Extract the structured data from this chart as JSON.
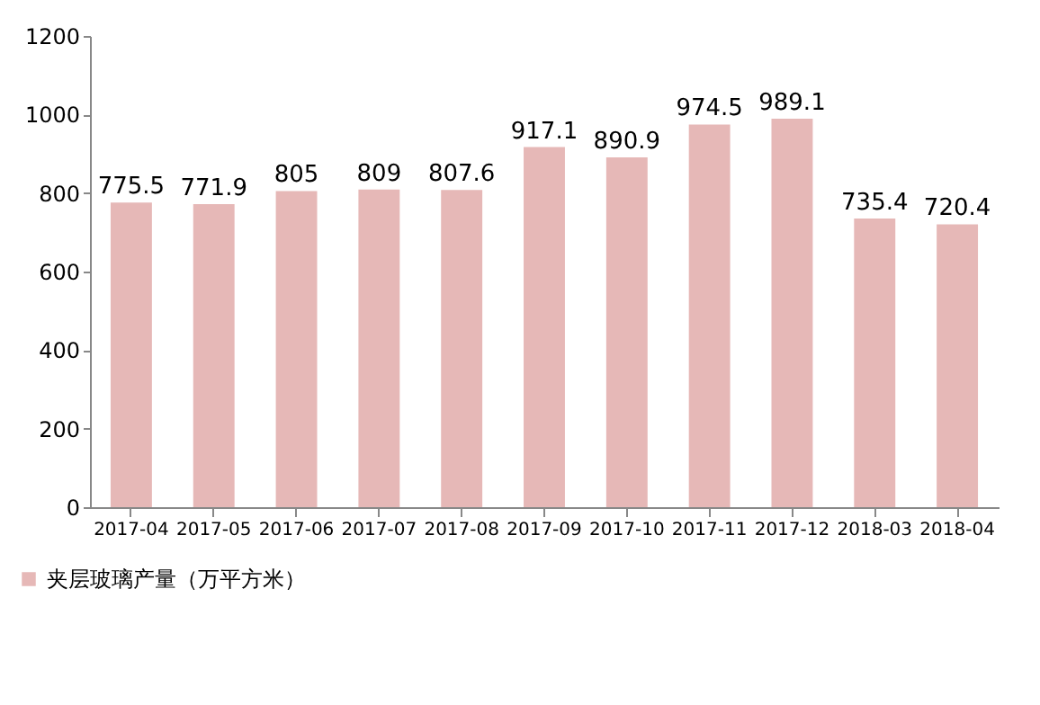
{
  "chart_data": {
    "type": "bar",
    "categories": [
      "2017-04",
      "2017-05",
      "2017-06",
      "2017-07",
      "2017-08",
      "2017-09",
      "2017-10",
      "2017-11",
      "2017-12",
      "2018-03",
      "2018-04"
    ],
    "series": [
      {
        "name": "夹层玻璃产量（万平方米）",
        "color": "#e6b8b7",
        "values": [
          775.5,
          771.9,
          805,
          809,
          807.6,
          917.1,
          890.9,
          974.5,
          989.1,
          735.4,
          720.4
        ]
      }
    ],
    "ylim": [
      0,
      1200
    ],
    "yticks": [
      0,
      200,
      400,
      600,
      800,
      1000,
      1200
    ],
    "data_labels": true,
    "grid": false,
    "legend": "bottom left"
  }
}
